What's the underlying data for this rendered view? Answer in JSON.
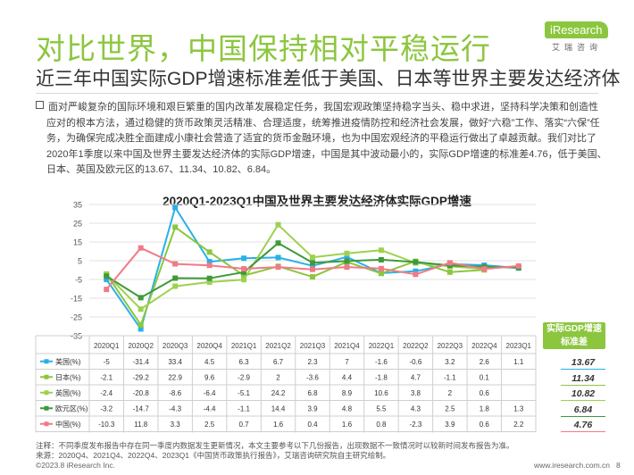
{
  "header": {
    "title": "对比世界，中国保持相对平稳运行",
    "subtitle": "近三年中国实际GDP增速标准差低于美国、日本等世界主要发达经济体"
  },
  "logo": {
    "name": "iResearch",
    "sub": "艾瑞咨询"
  },
  "body_text": "面对严峻复杂的国际环境和艰巨繁重的国内改革发展稳定任务，我国宏观政策坚持稳字当头、稳中求进，坚持科学决策和创造性应对的根本方法，通过稳健的货币政策灵活精准、合理适度，统筹推进疫情防控和经济社会发展，做好“六稳”工作、落实“六保”任务，为确保完成决胜全面建成小康社会营造了适宜的货币金融环境，也为中国宏观经济的平稳运行做出了卓越贡献。我们对比了2020年1季度以来中国及世界主要发达经济体的实际GDP增速，中国是其中波动最小的，实际GDP增速的标准差4.76，低于美国、日本、英国及欧元区的13.67、11.34、10.82、6.84。",
  "chart_data": {
    "type": "line",
    "title": "2020Q1-2023Q1中国及世界主要发达经济体实际GDP增速",
    "categories": [
      "2020Q1",
      "2020Q2",
      "2020Q3",
      "2020Q4",
      "2021Q1",
      "2021Q2",
      "2021Q3",
      "2021Q4",
      "2022Q1",
      "2022Q2",
      "2022Q3",
      "2022Q4",
      "2023Q1"
    ],
    "ylim": [
      -35,
      35
    ],
    "yticks": [
      35,
      25,
      15,
      5,
      -5,
      -15,
      -25,
      -35
    ],
    "grid": "horizontal",
    "series": [
      {
        "name": "美国(%)",
        "color": "#2ab0e8",
        "values": [
          -5,
          -31.4,
          33.4,
          4.5,
          6.3,
          6.7,
          2.3,
          7,
          -1.6,
          -0.6,
          3.2,
          2.6,
          1.1
        ],
        "labels": [
          "-5",
          "-31.4",
          "33.4",
          "4.5",
          "6.3",
          "6.7",
          "2.3",
          "7",
          "-1.6",
          "-0.6",
          "3.2",
          "2.6",
          "1.1"
        ]
      },
      {
        "name": "日本(%)",
        "color": "#8cc63f",
        "values": [
          -2.1,
          -29.2,
          22.9,
          9.6,
          -2.9,
          2,
          -3.6,
          4.4,
          -1.8,
          4.7,
          -1.1,
          0.1,
          null
        ],
        "labels": [
          "-2.1",
          "-29.2",
          "22.9",
          "9.6",
          "-2.9",
          "2",
          "-3.6",
          "4.4",
          "-1.8",
          "4.7",
          "-1.1",
          "0.1",
          ""
        ]
      },
      {
        "name": "英国(%)",
        "color": "#9dd14f",
        "values": [
          -2.4,
          -20.8,
          -8.6,
          -6.4,
          -5.1,
          24.2,
          6.8,
          8.9,
          10.6,
          3.8,
          2,
          0.6,
          null
        ],
        "labels": [
          "-2.4",
          "-20.8",
          "-8.6",
          "-6.4",
          "-5.1",
          "24.2",
          "6.8",
          "8.9",
          "10.6",
          "3.8",
          "2",
          "0.6",
          ""
        ]
      },
      {
        "name": "欧元区(%)",
        "color": "#3f9a3a",
        "values": [
          -3.2,
          -14.7,
          -4.3,
          -4.4,
          -1.1,
          14.4,
          3.9,
          4.8,
          5.5,
          4.3,
          2.5,
          1.8,
          1.3
        ],
        "labels": [
          "-3.2",
          "-14.7",
          "-4.3",
          "-4.4",
          "-1.1",
          "14.4",
          "3.9",
          "4.8",
          "5.5",
          "4.3",
          "2.5",
          "1.8",
          "1.3"
        ]
      },
      {
        "name": "中国(%)",
        "color": "#f07a86",
        "values": [
          -10.3,
          11.8,
          3.3,
          2.5,
          0.7,
          1.6,
          0.4,
          1.6,
          0.8,
          -2.3,
          3.9,
          0.6,
          2.2
        ],
        "labels": [
          "-10.3",
          "11.8",
          "3.3",
          "2.5",
          "0.7",
          "1.6",
          "0.4",
          "1.6",
          "0.8",
          "-2.3",
          "3.9",
          "0.6",
          "2.2"
        ]
      }
    ],
    "std_header": "实际GDP增速标准差",
    "std_values": [
      "13.67",
      "11.34",
      "10.82",
      "6.84",
      "4.76"
    ]
  },
  "notes": {
    "note": "注释：不同季度发布报告中存在同一季度内数据发生更新情况，本文主要参考以下几份报告，出现数据不一致情况时以较新时间发布报告为准。",
    "source": "来源：2020Q4、2021Q4、2022Q4、2023Q1《中国货币政策执行报告》，艾瑞咨询研究院自主研究绘制。"
  },
  "footer": {
    "copyright": "©2023.8 iResearch Inc.",
    "url": "www.iresearch.com.cn",
    "page": "8"
  }
}
